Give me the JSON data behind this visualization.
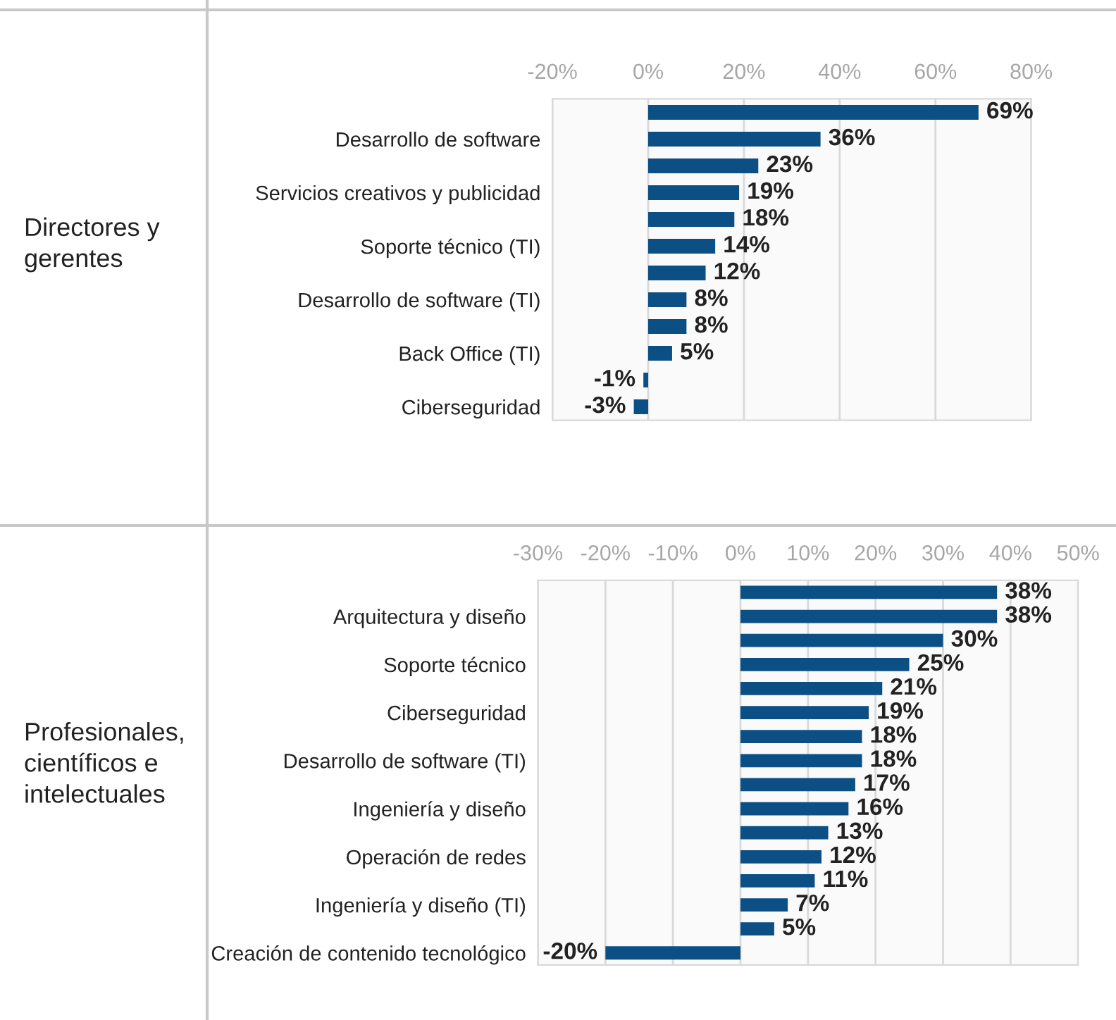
{
  "chart_data": [
    {
      "type": "bar",
      "orientation": "horizontal",
      "title": "Directores y gerentes",
      "categories": [
        null,
        "Desarrollo de software",
        null,
        "Servicios creativos y publicidad",
        null,
        "Soporte técnico (TI)",
        null,
        "Desarrollo de software (TI)",
        null,
        "Back Office (TI)",
        null,
        "Ciberseguridad"
      ],
      "values": [
        69,
        36,
        23,
        19,
        18,
        14,
        12,
        8,
        8,
        5,
        -1,
        -3
      ],
      "value_labels": [
        "69%",
        "36%",
        "23%",
        "19%",
        "18%",
        "14%",
        "12%",
        "8%",
        "8%",
        "5%",
        "-1%",
        "-3%"
      ],
      "color": "#0b4f85",
      "xlim": [
        -20,
        80
      ],
      "xticks": [
        {
          "value": -20,
          "label": "-20%"
        },
        {
          "value": 0,
          "label": "0%"
        },
        {
          "value": 20,
          "label": "20%"
        },
        {
          "value": 40,
          "label": "40%"
        },
        {
          "value": 60,
          "label": "60%"
        },
        {
          "value": 80,
          "label": "80%"
        }
      ],
      "grid": "x"
    },
    {
      "type": "bar",
      "orientation": "horizontal",
      "title": "Profesionales, científicos e intelectuales",
      "categories": [
        null,
        "Arquitectura y diseño",
        null,
        "Soporte técnico",
        null,
        "Ciberseguridad",
        null,
        "Desarrollo de software (TI)",
        null,
        "Ingeniería y diseño",
        null,
        "Operación de redes",
        null,
        "Ingeniería y diseño (TI)",
        null,
        "Creación de contenido tecnológico"
      ],
      "values": [
        38,
        38,
        30,
        25,
        21,
        19,
        18,
        18,
        17,
        16,
        13,
        12,
        11,
        7,
        5,
        -20
      ],
      "value_labels": [
        "38%",
        "38%",
        "30%",
        "25%",
        "21%",
        "19%",
        "18%",
        "18%",
        "17%",
        "16%",
        "13%",
        "12%",
        "11%",
        "7%",
        "5%",
        "-20%"
      ],
      "color": "#0b4f85",
      "xlim": [
        -30,
        50
      ],
      "xticks": [
        {
          "value": -30,
          "label": "-30%"
        },
        {
          "value": -20,
          "label": "-20%"
        },
        {
          "value": -10,
          "label": "-10%"
        },
        {
          "value": 0,
          "label": "0%"
        },
        {
          "value": 10,
          "label": "10%"
        },
        {
          "value": 20,
          "label": "20%"
        },
        {
          "value": 30,
          "label": "30%"
        },
        {
          "value": 40,
          "label": "40%"
        },
        {
          "value": 50,
          "label": "50%"
        }
      ],
      "grid": "x"
    }
  ]
}
